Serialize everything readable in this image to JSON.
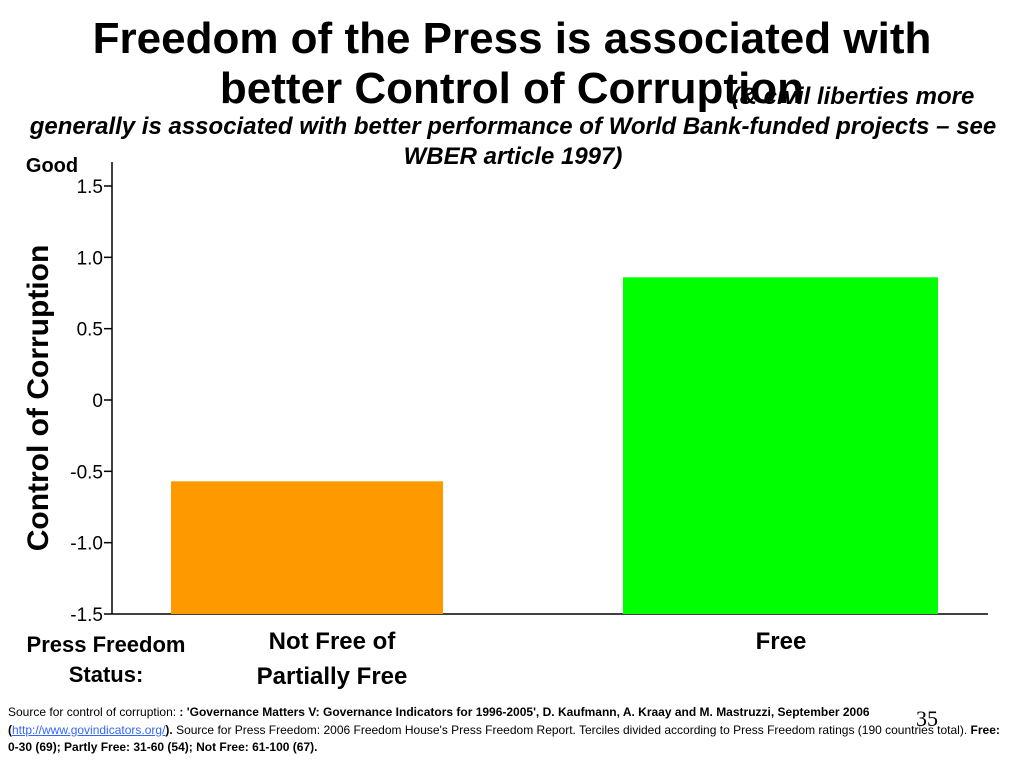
{
  "slide": {
    "title_line1": "Freedom of the Press is associated with",
    "title_line2": "better Control of Corruption",
    "subtitle_part1": "(& civil liberties more",
    "subtitle_part2": "generally is associated with better performance of World Bank-funded projects – see WBER article 1997)",
    "good_label": "Good",
    "press_label_line1": "Press Freedom",
    "press_label_line2": "Status:",
    "slide_number": "35"
  },
  "chart_data": {
    "type": "bar",
    "title": "",
    "ylabel": "Control of Corruption",
    "xlabel": "Press Freedom Status:",
    "ylim": [
      -1.5,
      1.5
    ],
    "yticks": [
      1.5,
      1.0,
      0.5,
      0,
      -0.5,
      -1.0,
      -1.5
    ],
    "ytick_labels": [
      "1.5",
      "1.0",
      "0.5",
      "0",
      "-0.5",
      "-1.0",
      "-1.5"
    ],
    "categories": [
      [
        "Not Free of",
        "Partially Free"
      ],
      [
        "Free"
      ]
    ],
    "values": [
      -0.57,
      0.86
    ],
    "colors": [
      "#ff9900",
      "#00ff00"
    ],
    "grid": false,
    "legend": "none"
  },
  "footnote": {
    "p1": "Source for control of corruption: ",
    "b1": ": 'Governance Matters V: Governance Indicators for 1996-2005', D. Kaufmann, A. Kraay and M. Mastruzzi, September 2006 (",
    "link": "http://www.govindicators.org/",
    "b2": ").",
    "p2": " Source for Press Freedom: 2006 Freedom House's Press Freedom Report. Terciles divided according to Press Freedom ratings (190 countries total). ",
    "b3": "Free: 0-30 (69); Partly Free: 31-60 (54); Not Free: 61-100 (67)."
  }
}
